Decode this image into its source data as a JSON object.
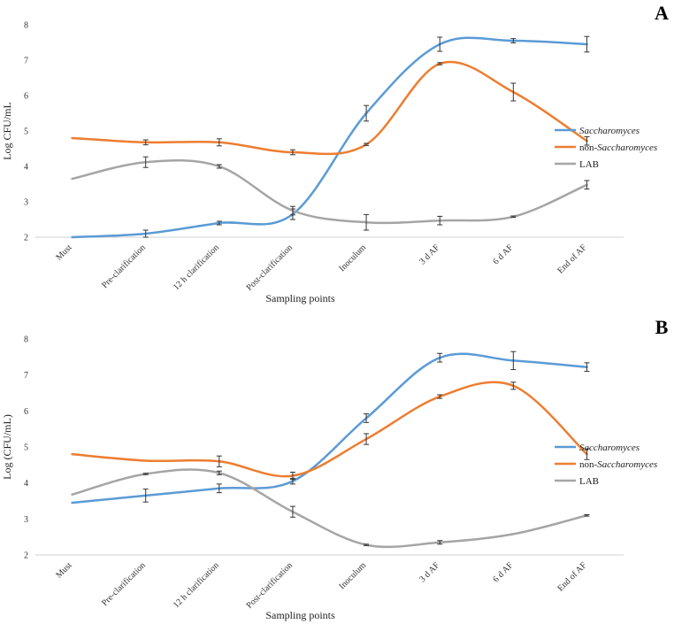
{
  "chart_data": [
    {
      "type": "line",
      "panel": "A",
      "categories": [
        "Must",
        "Pre-clarification",
        "12 h clarification",
        "Post-clarification",
        "Inoculum",
        "3 d AF",
        "6 d AF",
        "End of AF"
      ],
      "series": [
        {
          "name_prefix": "",
          "name_italic": "Saccharomyces",
          "color": "#5b9bd5",
          "values": [
            2.0,
            2.1,
            2.4,
            2.65,
            5.5,
            7.45,
            7.55,
            7.45
          ],
          "errors": [
            0,
            0.1,
            0.05,
            0.15,
            0.22,
            0.2,
            0.06,
            0.22
          ]
        },
        {
          "name_prefix": "non-",
          "name_italic": "Saccharomyces",
          "color": "#ed7d31",
          "values": [
            4.8,
            4.68,
            4.68,
            4.4,
            4.62,
            6.9,
            6.1,
            4.72
          ],
          "errors": [
            0,
            0.07,
            0.1,
            0.07,
            0.03,
            0.03,
            0.25,
            0.12
          ]
        },
        {
          "name_prefix": "LAB",
          "name_italic": "",
          "color": "#a5a5a5",
          "values": [
            3.65,
            4.12,
            4.0,
            2.75,
            2.42,
            2.47,
            2.58,
            3.48
          ],
          "errors": [
            0,
            0.15,
            0.05,
            0.12,
            0.22,
            0.12,
            0.02,
            0.12
          ]
        }
      ],
      "ylabel": "Log CFU/mL",
      "xlabel": "Sampling points",
      "ylim": [
        2,
        8
      ],
      "yticks": [
        2,
        3,
        4,
        5,
        6,
        7,
        8
      ],
      "legend": "right",
      "grid": false
    },
    {
      "type": "line",
      "panel": "B",
      "categories": [
        "Must",
        "Pre-clarification",
        "12 h clarification",
        "Post-clarification",
        "Inoculum",
        "3 d AF",
        "6 d AF",
        "End of AF"
      ],
      "series": [
        {
          "name_prefix": "",
          "name_italic": "Saccharomyces",
          "color": "#5b9bd5",
          "values": [
            3.45,
            3.65,
            3.85,
            4.05,
            5.8,
            7.48,
            7.4,
            7.22
          ],
          "errors": [
            0,
            0.18,
            0.12,
            0.08,
            0.12,
            0.12,
            0.25,
            0.12
          ]
        },
        {
          "name_prefix": "non-",
          "name_italic": "Saccharomyces",
          "color": "#ed7d31",
          "values": [
            4.8,
            4.62,
            4.6,
            4.2,
            5.22,
            6.4,
            6.7,
            4.8
          ],
          "errors": [
            0,
            0,
            0.15,
            0.1,
            0.15,
            0.05,
            0.1,
            0.15
          ]
        },
        {
          "name_prefix": "LAB",
          "name_italic": "",
          "color": "#a5a5a5",
          "values": [
            3.68,
            4.25,
            4.28,
            3.2,
            2.28,
            2.35,
            2.58,
            3.1
          ],
          "errors": [
            0,
            0.02,
            0.05,
            0.15,
            0.02,
            0.05,
            0,
            0.02
          ]
        }
      ],
      "ylabel": "Log (CFU/mL)",
      "xlabel": "Sampling points",
      "ylim": [
        2,
        8
      ],
      "yticks": [
        2,
        3,
        4,
        5,
        6,
        7,
        8
      ],
      "legend": "right",
      "grid": false
    }
  ]
}
